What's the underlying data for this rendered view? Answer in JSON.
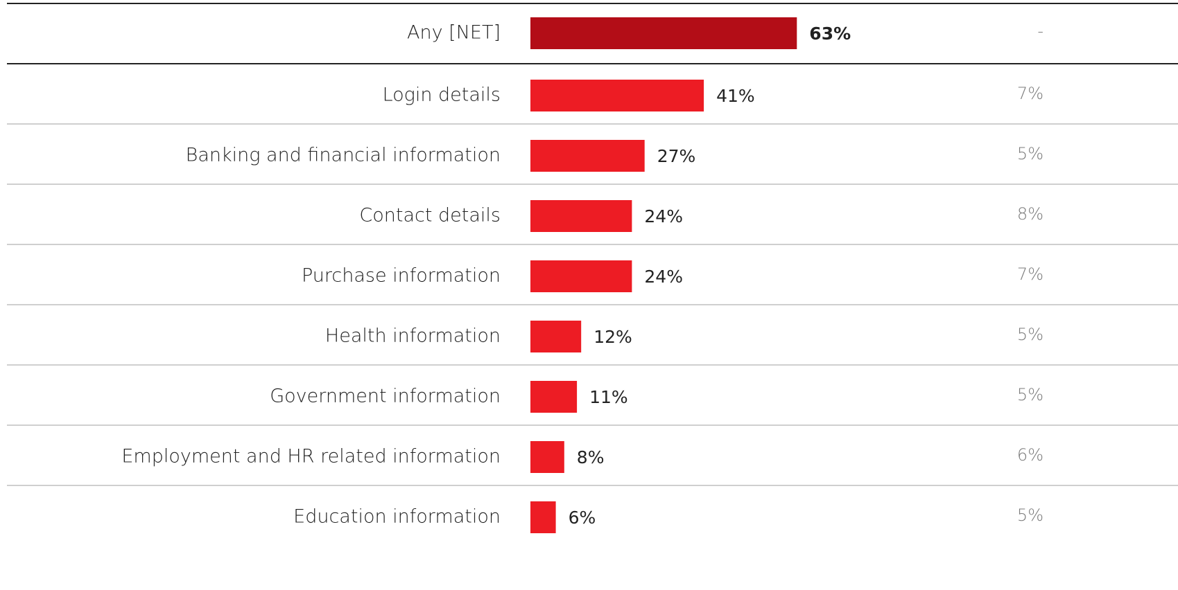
{
  "chart_data": {
    "type": "bar",
    "orientation": "horizontal",
    "categories": [
      "Any [NET]",
      "Login details",
      "Banking and financial information",
      "Contact details",
      "Purchase information",
      "Health information",
      "Government information",
      "Employment and HR related information",
      "Education information"
    ],
    "values": [
      63,
      41,
      27,
      24,
      24,
      12,
      11,
      8,
      6
    ],
    "value_labels": [
      "63%",
      "41%",
      "27%",
      "24%",
      "24%",
      "12%",
      "11%",
      "8%",
      "6%"
    ],
    "side_labels": [
      "-",
      "7%",
      "5%",
      "8%",
      "7%",
      "5%",
      "5%",
      "6%",
      "5%"
    ],
    "xlim": [
      0,
      100
    ],
    "color": "#ed1c24",
    "net_color": "#b30d17"
  }
}
